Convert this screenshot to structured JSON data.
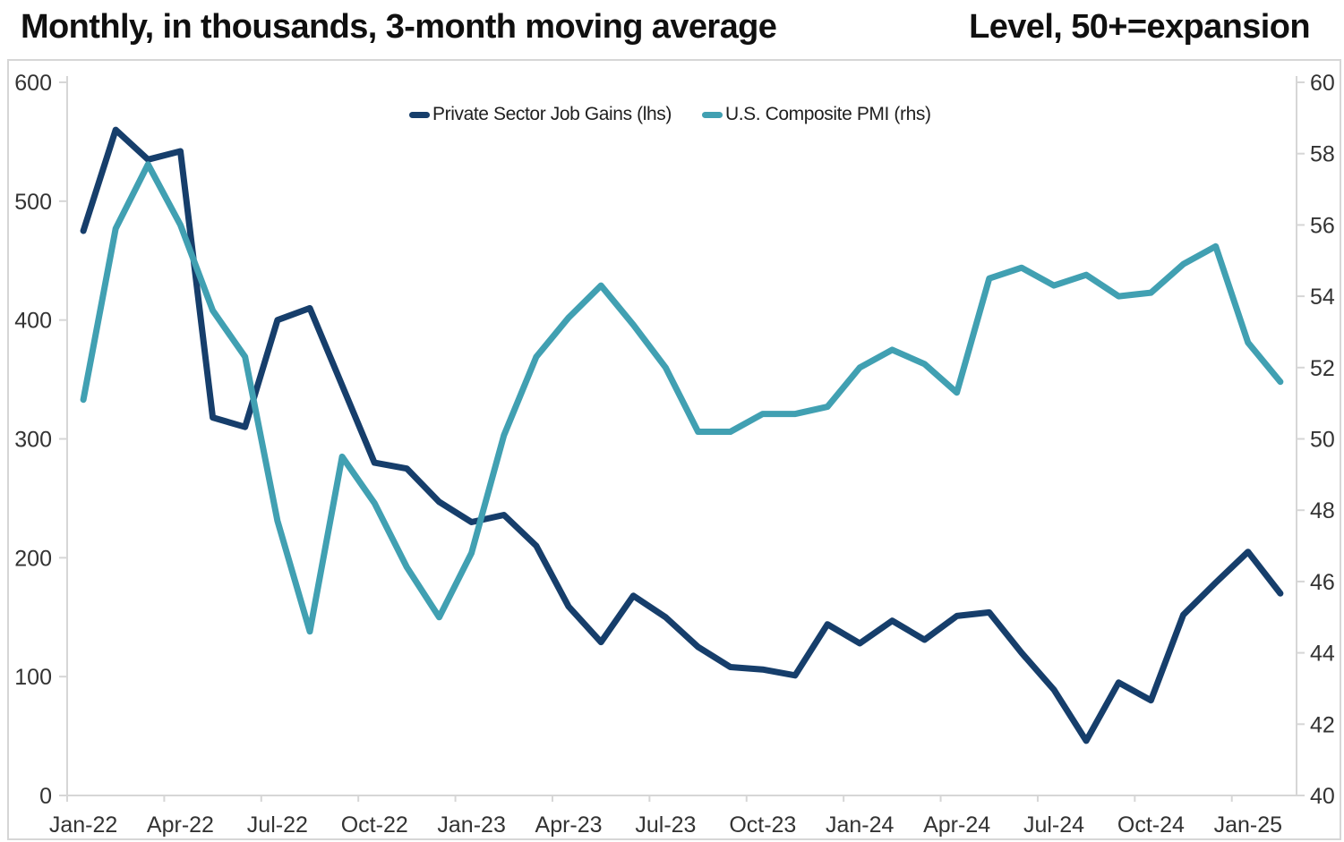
{
  "chart_data": {
    "type": "line",
    "title_left": "Monthly, in thousands, 3-month moving average",
    "title_right": "Level, 50+=expansion",
    "x": [
      "Jan-22",
      "Feb-22",
      "Mar-22",
      "Apr-22",
      "May-22",
      "Jun-22",
      "Jul-22",
      "Aug-22",
      "Sep-22",
      "Oct-22",
      "Nov-22",
      "Dec-22",
      "Jan-23",
      "Feb-23",
      "Mar-23",
      "Apr-23",
      "May-23",
      "Jun-23",
      "Jul-23",
      "Aug-23",
      "Sep-23",
      "Oct-23",
      "Nov-23",
      "Dec-23",
      "Jan-24",
      "Feb-24",
      "Mar-24",
      "Apr-24",
      "May-24",
      "Jun-24",
      "Jul-24",
      "Aug-24",
      "Sep-24",
      "Oct-24",
      "Nov-24",
      "Dec-24",
      "Jan-25",
      "Feb-25"
    ],
    "x_tick_labels": [
      "Jan-22",
      "Apr-22",
      "Jul-22",
      "Oct-22",
      "Jan-23",
      "Apr-23",
      "Jul-23",
      "Oct-23",
      "Jan-24",
      "Apr-24",
      "Jul-24",
      "Oct-24",
      "Jan-25"
    ],
    "series": [
      {
        "name": "Private Sector Job Gains (lhs)",
        "axis": "left",
        "color": "#163e6b",
        "values": [
          475,
          560,
          535,
          542,
          318,
          310,
          400,
          410,
          345,
          280,
          275,
          247,
          230,
          236,
          210,
          159,
          129,
          168,
          150,
          125,
          108,
          106,
          101,
          144,
          128,
          147,
          131,
          151,
          154,
          120,
          89,
          46,
          95,
          80,
          152,
          179,
          205,
          170
        ]
      },
      {
        "name": "U.S. Composite PMI (rhs)",
        "axis": "right",
        "color": "#41a0b2",
        "values": [
          51.1,
          55.9,
          57.7,
          56.0,
          53.6,
          52.3,
          47.7,
          44.6,
          49.5,
          48.2,
          46.4,
          45.0,
          46.8,
          50.1,
          52.3,
          53.4,
          54.3,
          53.2,
          52.0,
          50.2,
          50.2,
          50.7,
          50.7,
          50.9,
          52.0,
          52.5,
          52.1,
          51.3,
          54.5,
          54.8,
          54.3,
          54.6,
          54.0,
          54.1,
          54.9,
          55.4,
          52.7,
          51.6
        ]
      }
    ],
    "left_axis": {
      "min": 0,
      "max": 600,
      "ticks": [
        0,
        100,
        200,
        300,
        400,
        500,
        600
      ]
    },
    "right_axis": {
      "min": 40,
      "max": 60,
      "ticks": [
        40,
        42,
        44,
        46,
        48,
        50,
        52,
        54,
        56,
        58,
        60
      ]
    },
    "grid": false,
    "legend_position": "top-center",
    "layout": {
      "axis_color": "#d6d6d6",
      "tick_label_color": "#333333",
      "title_color": "#101010",
      "line_width": 7
    }
  }
}
